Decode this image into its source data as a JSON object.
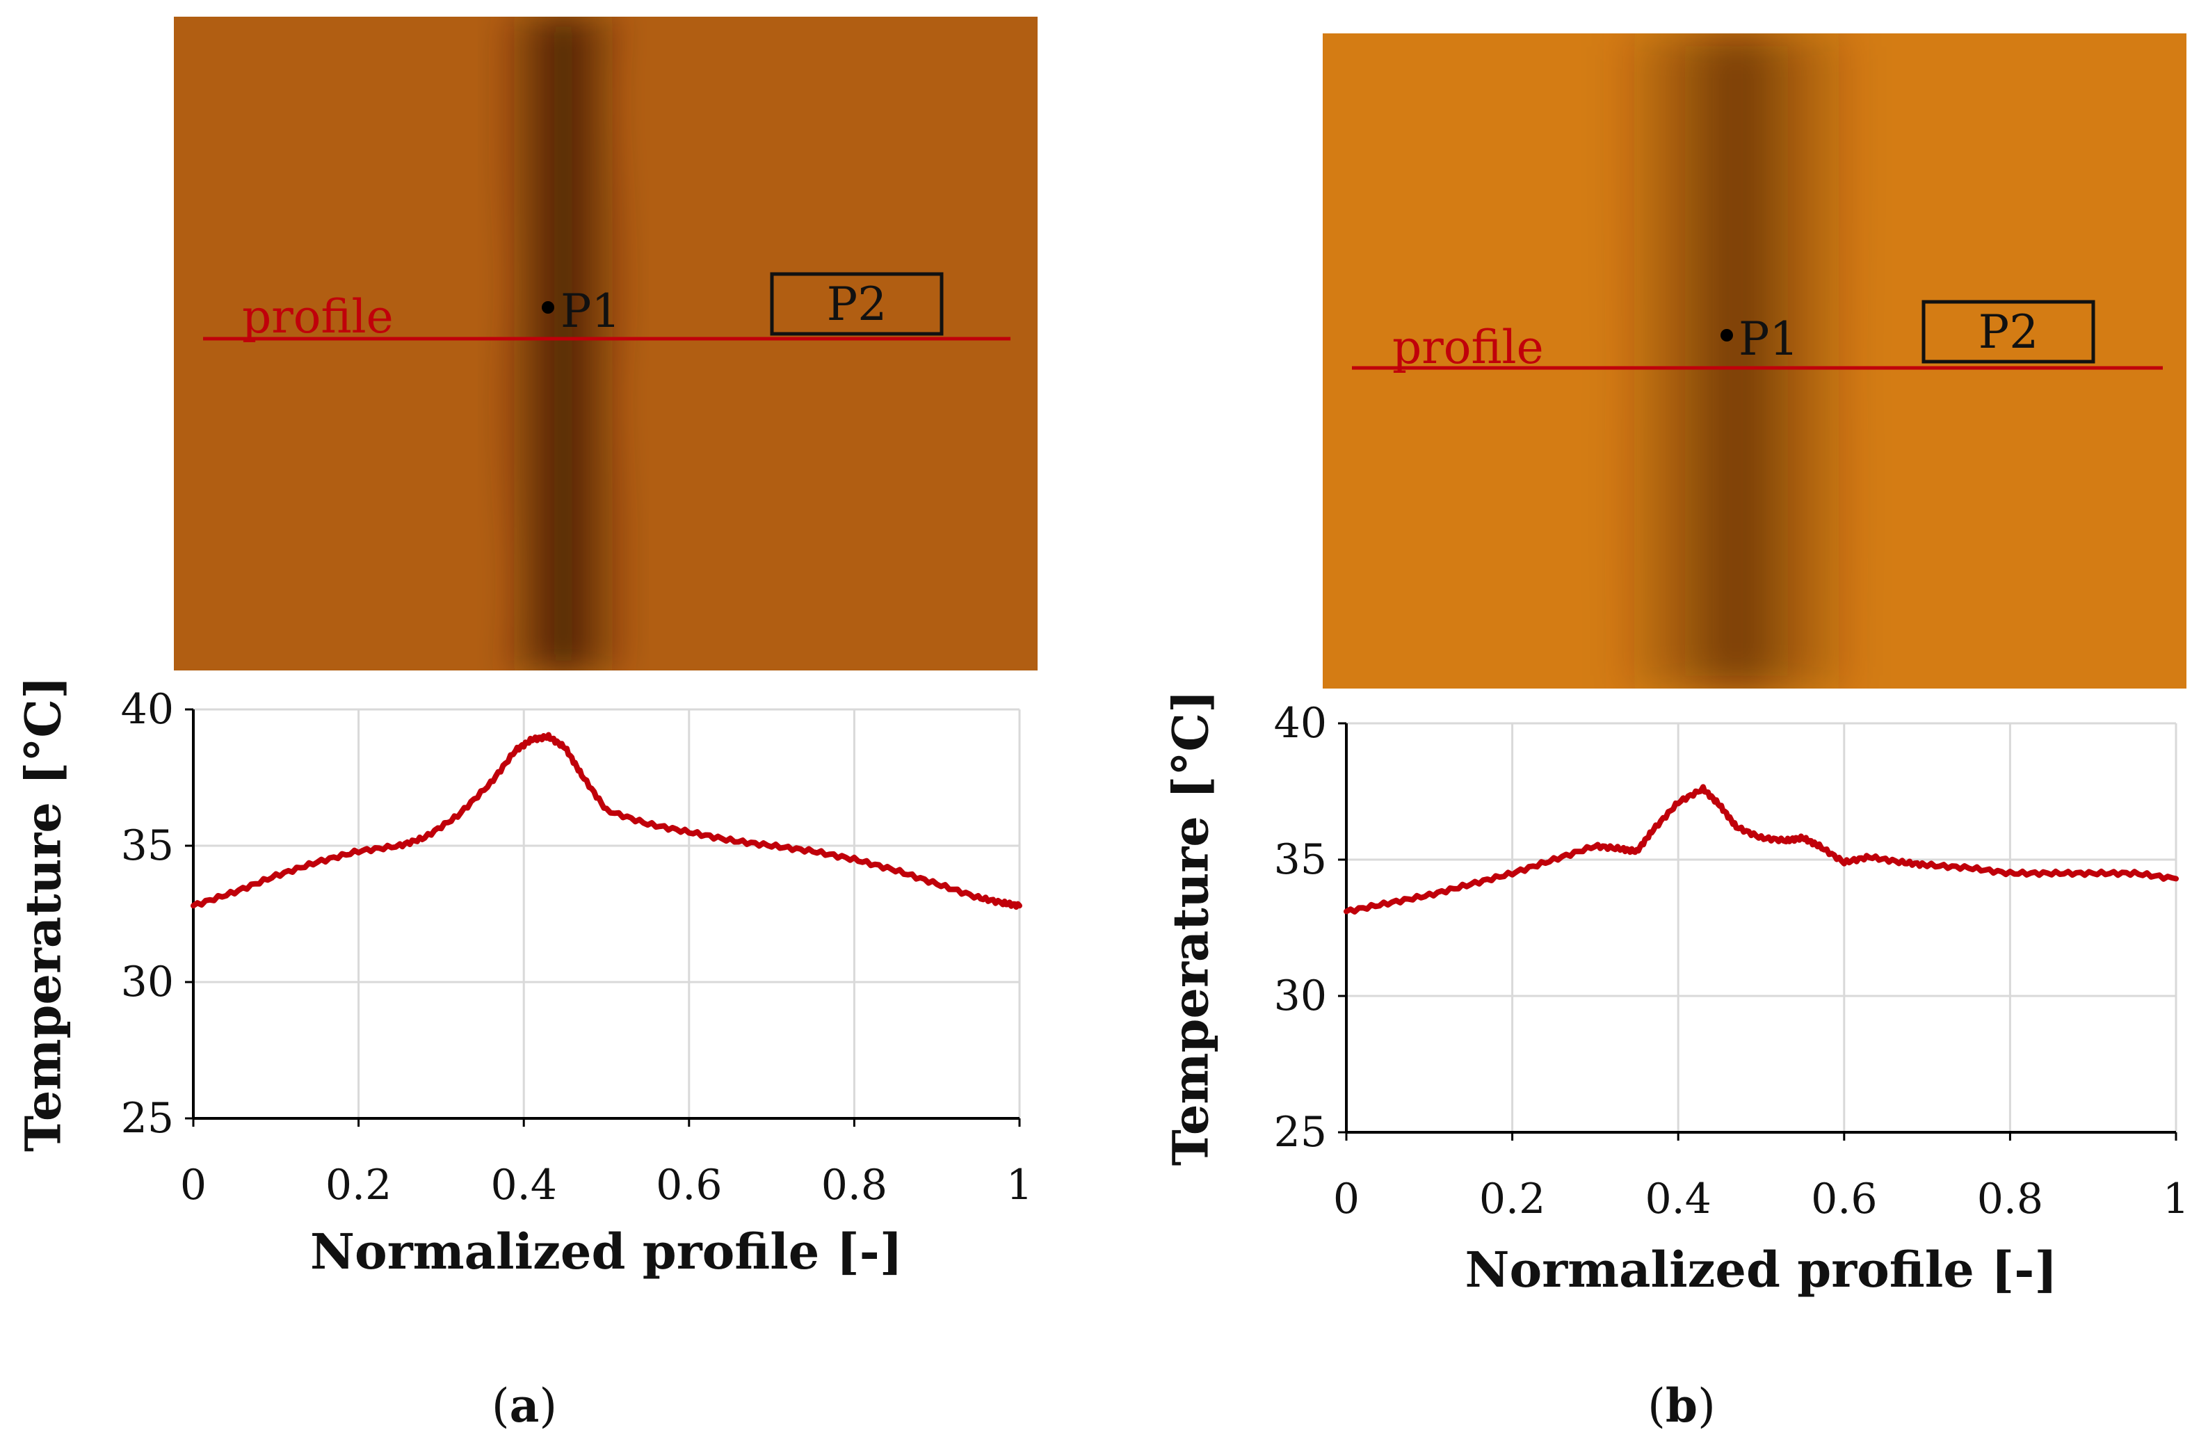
{
  "panels": [
    {
      "caption_letter": "a",
      "image": {
        "profile_label": "profile",
        "point_label": "P1",
        "box_label": "P2",
        "background": "#b15e12",
        "band": "#3a1706",
        "line_color": "#c0000a"
      }
    },
    {
      "caption_letter": "b",
      "image": {
        "profile_label": "profile",
        "point_label": "P1",
        "box_label": "P2",
        "background": "#d47c14",
        "band": "#4a2108",
        "line_color": "#c0000a"
      }
    }
  ],
  "chart_data": [
    {
      "type": "line",
      "title": "",
      "xlabel": "Normalized profile [-]",
      "ylabel": "Temperature [°C]",
      "xlim": [
        0,
        1
      ],
      "ylim": [
        25,
        40
      ],
      "xticks": [
        "0",
        "0.2",
        "0.4",
        "0.6",
        "0.8",
        "1"
      ],
      "yticks": [
        "25",
        "30",
        "35",
        "40"
      ],
      "grid": true,
      "series": [
        {
          "name": "profile",
          "color": "#c0000a",
          "x": [
            0,
            0.05,
            0.1,
            0.15,
            0.2,
            0.25,
            0.28,
            0.32,
            0.36,
            0.39,
            0.41,
            0.43,
            0.45,
            0.47,
            0.5,
            0.55,
            0.6,
            0.65,
            0.7,
            0.75,
            0.8,
            0.85,
            0.9,
            0.95,
            0.98,
            1.0
          ],
          "y": [
            32.8,
            33.3,
            33.9,
            34.4,
            34.8,
            35.0,
            35.3,
            36.1,
            37.3,
            38.5,
            38.9,
            39.0,
            38.6,
            37.6,
            36.3,
            35.8,
            35.5,
            35.2,
            35.0,
            34.8,
            34.5,
            34.1,
            33.6,
            33.1,
            32.9,
            32.8
          ]
        }
      ]
    },
    {
      "type": "line",
      "title": "",
      "xlabel": "Normalized profile [-]",
      "ylabel": "Temperature [°C]",
      "xlim": [
        0,
        1
      ],
      "ylim": [
        25,
        40
      ],
      "xticks": [
        "0",
        "0.2",
        "0.4",
        "0.6",
        "0.8",
        "1"
      ],
      "yticks": [
        "25",
        "30",
        "35",
        "40"
      ],
      "grid": true,
      "series": [
        {
          "name": "profile",
          "color": "#c0000a",
          "x": [
            0,
            0.05,
            0.1,
            0.15,
            0.2,
            0.25,
            0.3,
            0.33,
            0.35,
            0.37,
            0.4,
            0.43,
            0.45,
            0.47,
            0.5,
            0.53,
            0.55,
            0.57,
            0.6,
            0.63,
            0.67,
            0.7,
            0.75,
            0.8,
            0.85,
            0.9,
            0.95,
            1.0
          ],
          "y": [
            33.1,
            33.4,
            33.7,
            34.1,
            34.5,
            35.0,
            35.5,
            35.4,
            35.3,
            36.1,
            37.1,
            37.6,
            37.0,
            36.2,
            35.8,
            35.7,
            35.8,
            35.5,
            34.9,
            35.1,
            34.9,
            34.8,
            34.7,
            34.5,
            34.5,
            34.5,
            34.5,
            34.3
          ]
        }
      ]
    }
  ]
}
